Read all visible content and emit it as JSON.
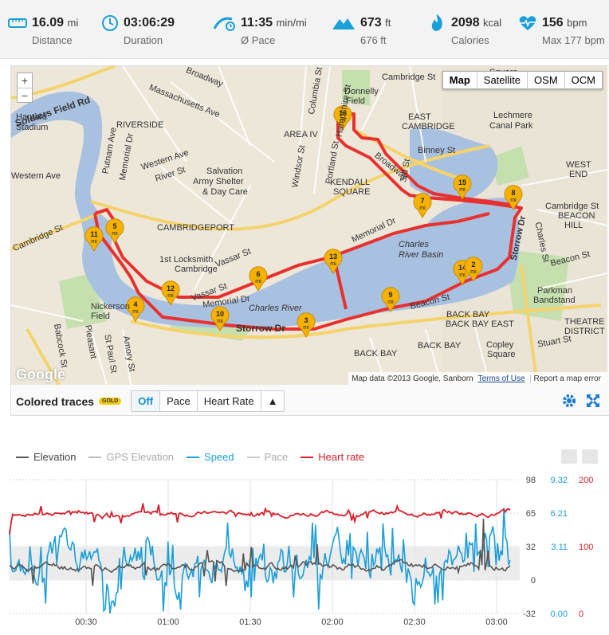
{
  "stats": [
    {
      "value": "16.09",
      "unit": "mi",
      "label": "Distance",
      "icon": "ruler-icon"
    },
    {
      "value": "03:06:29",
      "unit": "",
      "label": "Duration",
      "icon": "clock-icon"
    },
    {
      "value": "11:35",
      "unit": "min/mi",
      "label": "Ø Pace",
      "icon": "runner-pace-icon"
    },
    {
      "value": "673",
      "unit": "ft",
      "label": "676 ft",
      "icon": "mountain-icon"
    },
    {
      "value": "2098",
      "unit": "kcal",
      "label": "Calories",
      "icon": "flame-icon"
    },
    {
      "value": "156",
      "unit": "bpm",
      "label": "Max 177 bpm",
      "icon": "heart-pulse-icon"
    }
  ],
  "map": {
    "types": [
      "Map",
      "Satellite",
      "OSM",
      "OCM"
    ],
    "zoom_in": "+",
    "zoom_out": "−",
    "logo": "Google",
    "attribution": "Map data ©2013 Google, Sanborn",
    "terms": "Terms of Use",
    "report": "Report a map error",
    "labels": {
      "broadway": "Broadway",
      "cambridge_st": "Cambridge St",
      "soldiers": "Soldiers Field Rd",
      "harvard": "Harvard",
      "stadium": "Stadium",
      "western": "Western Ave",
      "riverside": "RIVERSIDE",
      "mass": "Massachusetts Ave",
      "river_st": "River St",
      "salvation": "Salvation",
      "army": "Army Shelter",
      "daycare": "& Day Care",
      "cambport": "CAMBRIDGEPORT",
      "locksmith": "1st Locksmith",
      "locks2": "Cambridge",
      "vassar": "Vassar St",
      "memorial": "Memorial Dr",
      "charles": "Charles River",
      "charles_basin": "Charles",
      "basin2": "River Basin",
      "storrow": "Storrow Dr",
      "kendall": "KENDALL",
      "square": "SQUARE",
      "area4": "AREA IV",
      "east_camb": "EAST",
      "east_camb2": "CAMBRIDGE",
      "lechmere": "Lechmere",
      "canal": "Canal Park",
      "binney": "Binney St",
      "beacon": "Beacon St",
      "back_bay_east": "BACK BAY EAST",
      "back_bay": "BACK BAY",
      "parkman": "Parkman",
      "bandstand": "Bandstand",
      "copley": "Copley",
      "copley_sq": "Square",
      "west_end": "WEST",
      "end2": "END",
      "beacon_hill": "BEACON",
      "hill2": "HILL",
      "nickerson": "Nickerson",
      "field": "Field",
      "donnelly": "Donnelly",
      "field2": "Field",
      "hampshire": "Hampshire St",
      "columbia": "Columbia St",
      "windsor": "Windsor St",
      "portland": "Portland St",
      "third": "3rd St",
      "putnam": "Putnam Ave",
      "memorial2": "Memorial Dr",
      "stuart": "Stuart St",
      "district": "DISTRICT",
      "theatre": "THEATRE",
      "pleasant": "Pleasant",
      "babcock": "Babcock St",
      "st_paul": "St Paul St",
      "amory": "Amory St",
      "cambridge_st2": "Cambridge St",
      "beacon_st2": "Beacon St",
      "charles_st": "Charles St",
      "square_top": "Square",
      "cambridge_top": "Cambridge St"
    },
    "markers": [
      {
        "n": "16",
        "u": "mi"
      },
      {
        "n": "7",
        "u": "mi"
      },
      {
        "n": "15",
        "u": "mi"
      },
      {
        "n": "8",
        "u": "mi"
      },
      {
        "n": "5",
        "u": "mi"
      },
      {
        "n": "11",
        "u": "mi"
      },
      {
        "n": "13",
        "u": "mi"
      },
      {
        "n": "6",
        "u": "mi"
      },
      {
        "n": "14",
        "u": "mi"
      },
      {
        "n": "2",
        "u": "mi"
      },
      {
        "n": "12",
        "u": "mi"
      },
      {
        "n": "4",
        "u": "mi"
      },
      {
        "n": "10",
        "u": "mi"
      },
      {
        "n": "3",
        "u": "mi"
      },
      {
        "n": "9",
        "u": "mi"
      }
    ],
    "route_color": "#e8312f"
  },
  "traces": {
    "label": "Colored traces",
    "badge": "GOLD",
    "options": [
      "Off",
      "Pace",
      "Heart Rate",
      "▲"
    ]
  },
  "legend": [
    {
      "name": "Elevation",
      "color": "#555555"
    },
    {
      "name": "GPS Elevation",
      "color": "#bbbbbb"
    },
    {
      "name": "Speed",
      "color": "#1b9fd8"
    },
    {
      "name": "Pace",
      "color": "#bbbbbb"
    },
    {
      "name": "Heart rate",
      "color": "#d6202b"
    }
  ],
  "chart_data": {
    "type": "line",
    "x_ticks": [
      "00:30",
      "01:00",
      "01:30",
      "02:00",
      "02:30",
      "03:00"
    ],
    "elevation_axis": [
      "98",
      "65",
      "32",
      "0",
      "-32"
    ],
    "speed_axis": [
      "9.32",
      "6.21",
      "3.11",
      "0.00"
    ],
    "hr_axis": [
      "200",
      "100",
      "0"
    ],
    "series": [
      {
        "name": "Heart rate",
        "color": "#d6202b",
        "approx_range": [
          150,
          175
        ]
      },
      {
        "name": "Speed",
        "color": "#1b9fd8",
        "approx_range": [
          0.5,
          6.5
        ]
      },
      {
        "name": "Elevation",
        "color": "#555555",
        "approx_range": [
          0,
          65
        ]
      }
    ]
  }
}
